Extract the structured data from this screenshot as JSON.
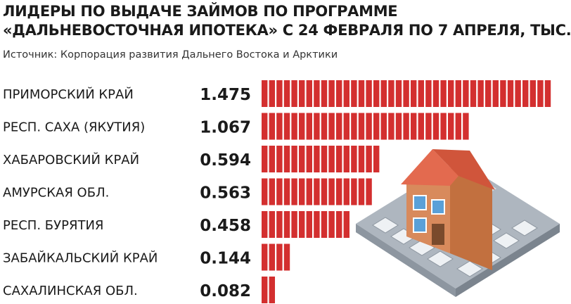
{
  "title_line1": "ЛИДЕРЫ ПО ВЫДАЧЕ ЗАЙМОВ ПО ПРОГРАММЕ",
  "title_line2": "«ДАЛЬНЕВОСТОЧНАЯ ИПОТЕКА» С 24 ФЕВРАЛЯ ПО 7 АПРЕЛЯ, ТЫС.",
  "source": "Источник: Корпорация развития Дальнего Востока и Арктики",
  "colors": {
    "bar": "#d32f2f",
    "text": "#1a1a1a",
    "illustration_roof": "#e36a4f",
    "illustration_wall": "#d88a5c"
  },
  "illustration": "house-on-calculator-icon",
  "chart_data": {
    "type": "bar",
    "orientation": "horizontal",
    "categories": [
      "ПРИМОРСКИЙ КРАЙ",
      "РЕСП. САХА (ЯКУТИЯ)",
      "ХАБАРОВСКИЙ КРАЙ",
      "АМУРСКАЯ ОБЛ.",
      "РЕСП. БУРЯТИЯ",
      "ЗАБАЙКАЛЬСКИЙ КРАЙ",
      "САХАЛИНСКАЯ ОБЛ."
    ],
    "values": [
      1.475,
      1.067,
      0.594,
      0.563,
      0.458,
      0.144,
      0.082
    ],
    "value_labels": [
      "1.475",
      "1.067",
      "0.594",
      "0.563",
      "0.458",
      "0.144",
      "0.082"
    ],
    "xlim": [
      0,
      1.5
    ],
    "grid": false,
    "legend": "none"
  }
}
